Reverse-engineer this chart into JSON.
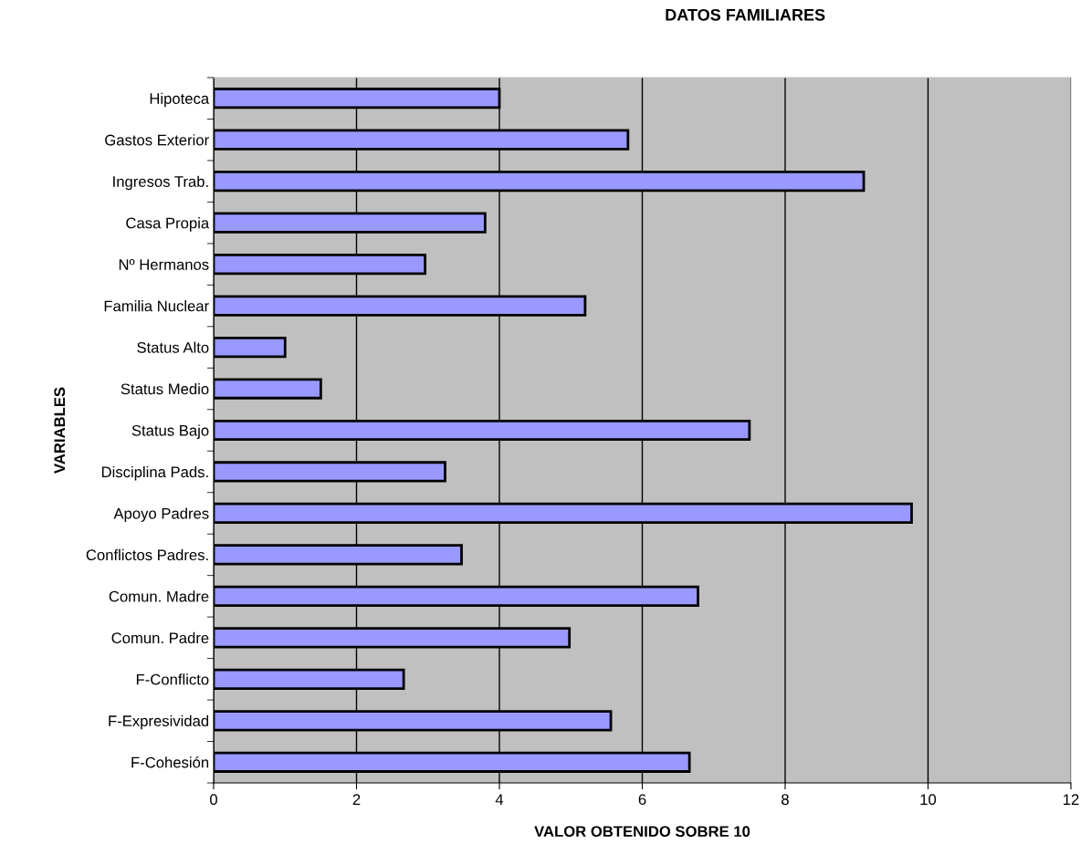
{
  "chart_data": {
    "type": "bar",
    "orientation": "horizontal",
    "title": "DATOS FAMILIARES",
    "xlabel": "VALOR OBTENIDO SOBRE 10",
    "ylabel": "VARIABLES",
    "categories": [
      "Hipoteca",
      "Gastos Exterior",
      "Ingresos Trab.",
      "Casa Propia",
      "Nº Hermanos",
      "Familia Nuclear",
      "Status Alto",
      "Status Medio",
      "Status Bajo",
      "Disciplina Pads.",
      "Apoyo Padres",
      "Conflictos Padres.",
      "Comun. Madre",
      "Comun. Padre",
      "F-Conflicto",
      "F-Expresividad",
      "F-Cohesión"
    ],
    "values": [
      4.0,
      5.8,
      9.1,
      3.8,
      2.96,
      5.2,
      1.0,
      1.5,
      7.5,
      3.24,
      9.77,
      3.47,
      6.78,
      4.98,
      2.66,
      5.56,
      6.66
    ],
    "color": "#9999ff",
    "xlim": [
      0,
      12
    ],
    "xticks": [
      0,
      2,
      4,
      6,
      8,
      10,
      12
    ],
    "grid": "x"
  }
}
